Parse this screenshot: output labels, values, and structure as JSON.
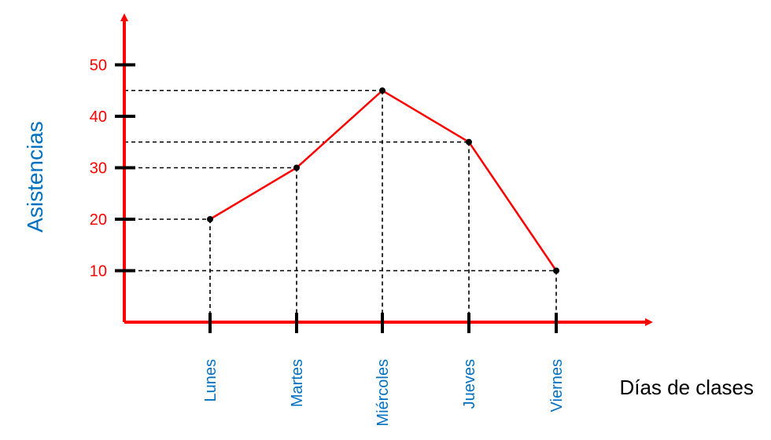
{
  "chart_data": {
    "type": "line",
    "title": "",
    "xlabel": "Días de clases",
    "ylabel": "Asistencias",
    "categories": [
      "Lunes",
      "Martes",
      "Miércoles",
      "Jueves",
      "Viernes"
    ],
    "series": [
      {
        "values": [
          20,
          30,
          45,
          35,
          10
        ]
      }
    ],
    "yticks": [
      "10",
      "20",
      "30",
      "40",
      "50"
    ],
    "ylim": [
      0,
      50
    ],
    "grid": false,
    "guide_lines": "dashed",
    "colors": {
      "axis": "#ff0000",
      "line": "#ff0000",
      "point": "#000000",
      "ytick_label": "#ff0000",
      "xtick_label": "#0070c0",
      "ylabel": "#0070c0",
      "xlabel": "#000000",
      "guide": "#000000"
    }
  }
}
